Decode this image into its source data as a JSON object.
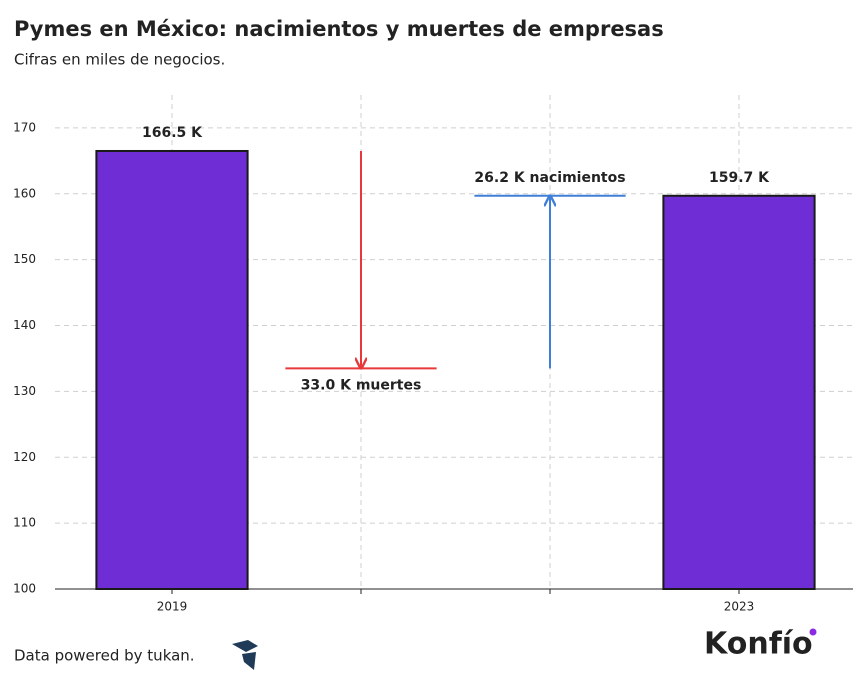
{
  "chart_data": {
    "type": "waterfall",
    "title": "Pymes en México: nacimientos y muertes de empresas",
    "subtitle": "Cifras en miles de negocios.",
    "categories": [
      "2019",
      null,
      null,
      "2023"
    ],
    "values": [
      166.5,
      33.0,
      26.2,
      159.7
    ],
    "value_labels": [
      "166.5 K",
      "33.0 K muertes",
      "26.2 K nacimientos",
      "159.7 K"
    ],
    "measure": [
      "total",
      "decrease",
      "increase",
      "total"
    ],
    "colors": {
      "total": "#6f2dd6",
      "decrease": "#e8383a",
      "increase": "#3f7fd8"
    },
    "ylim": [
      100,
      175
    ],
    "yticks": [
      100,
      110,
      120,
      130,
      140,
      150,
      160,
      170
    ],
    "grid": true
  },
  "footer": {
    "source": "Data powered by tukan.",
    "brand": "Konfío"
  }
}
